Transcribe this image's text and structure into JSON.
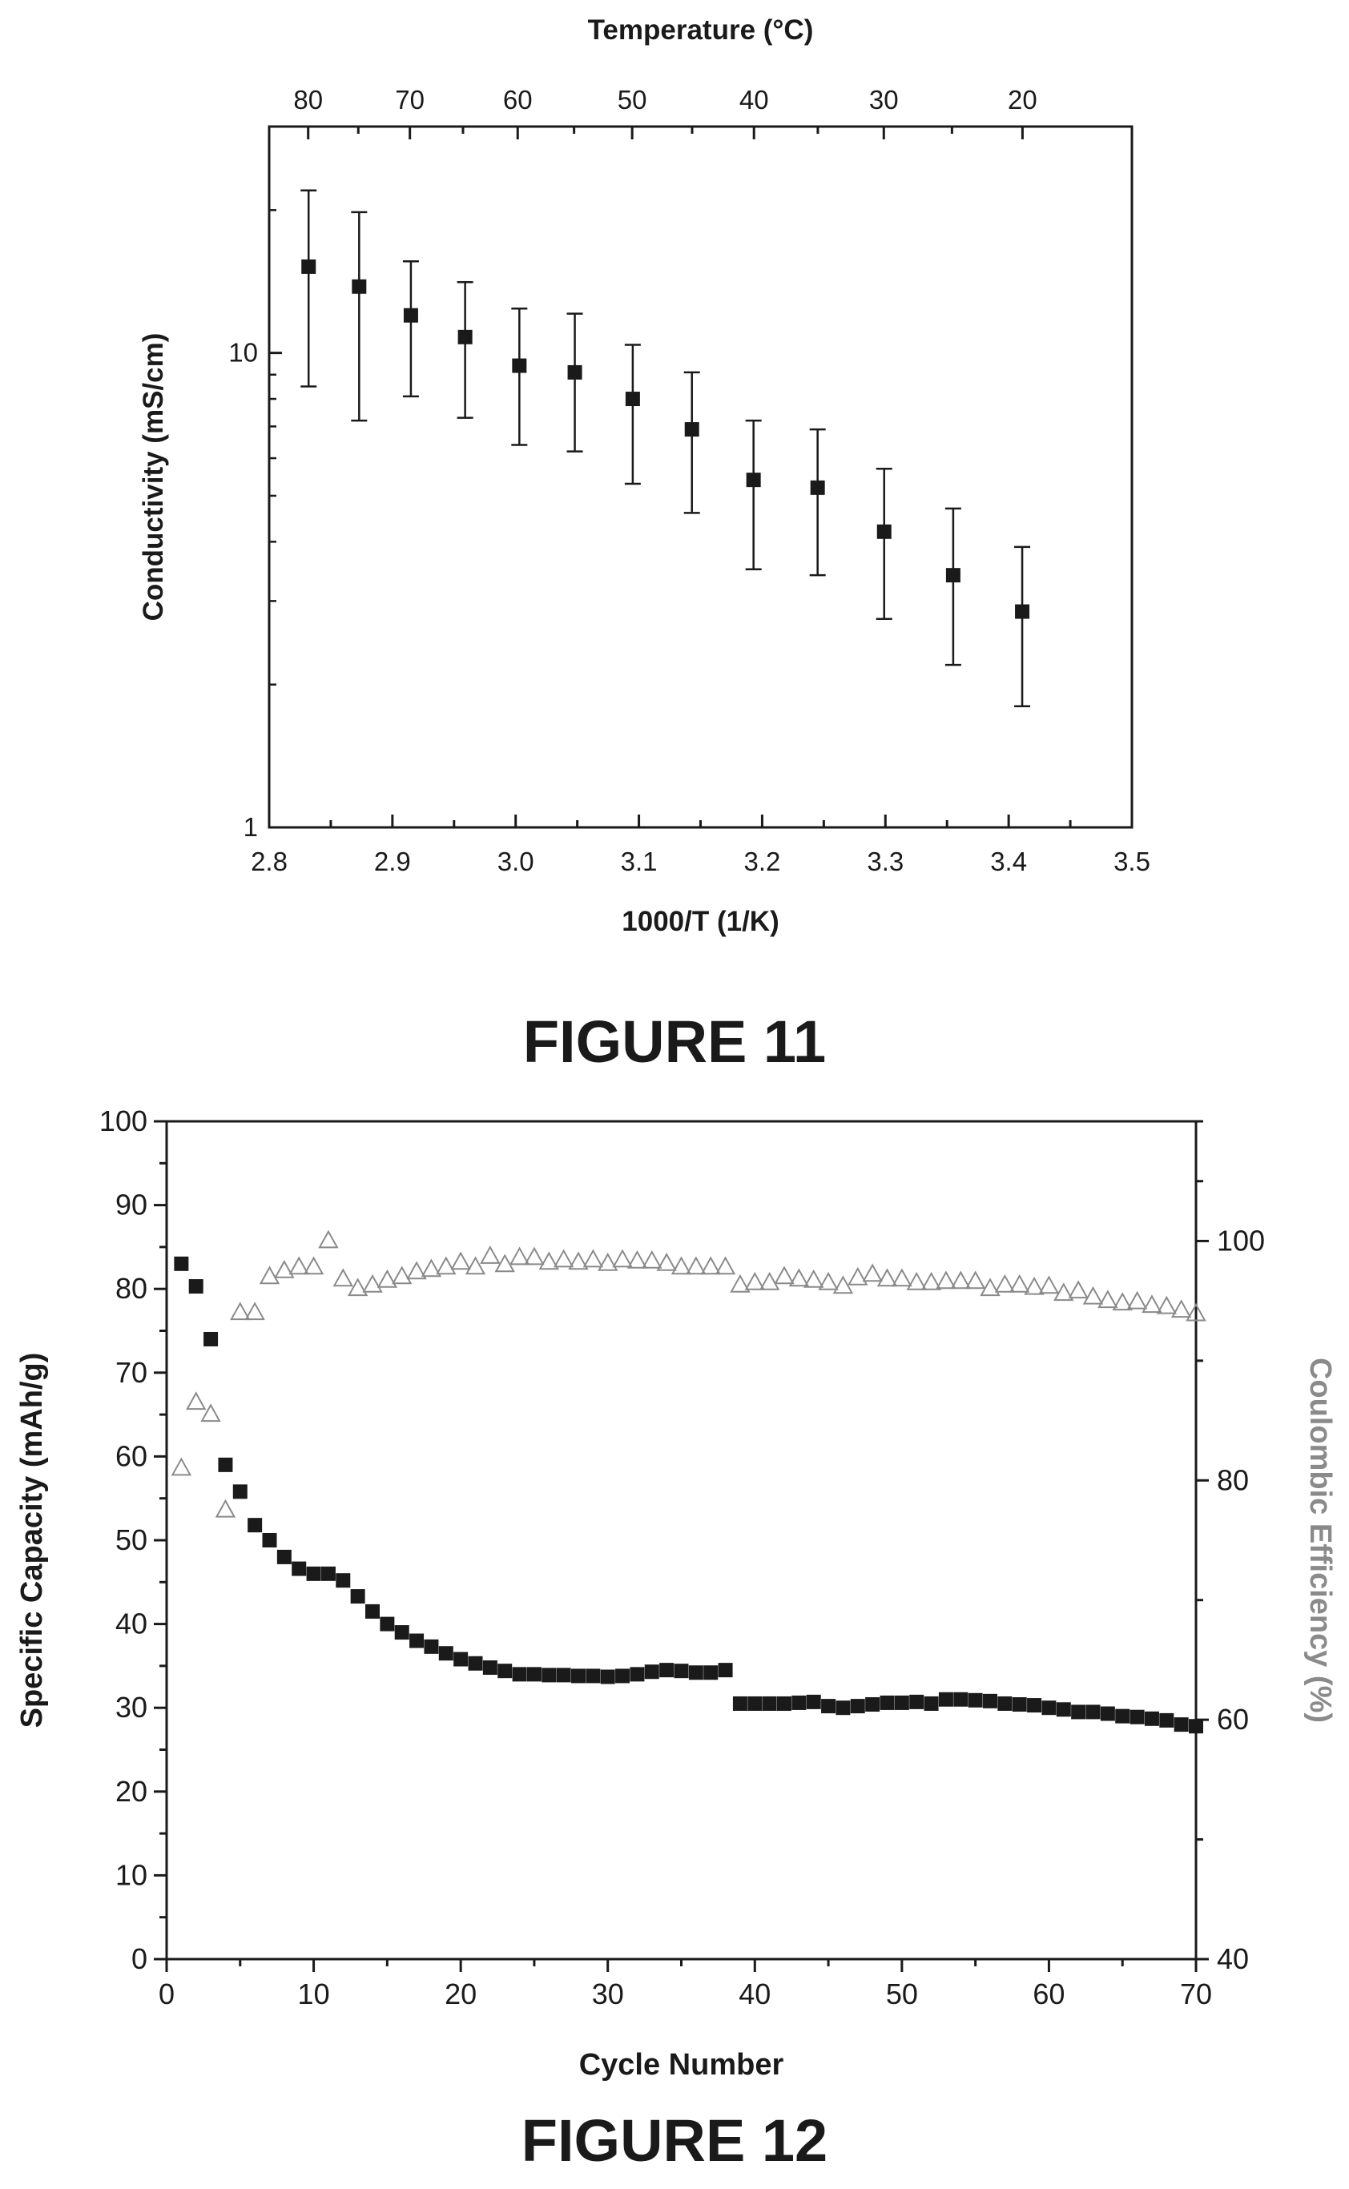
{
  "figures": [
    {
      "caption": "FIGURE 11"
    },
    {
      "caption": "FIGURE 12"
    }
  ],
  "chart_data": [
    {
      "type": "scatter",
      "xlabel": "1000/T (1/K)",
      "ylabel": "Conductivity (mS/cm)",
      "top_axis_label": "Temperature (°C)",
      "xlim": [
        2.8,
        3.5
      ],
      "ylim": [
        1,
        30
      ],
      "yscale": "log",
      "x_ticks": [
        "2.8",
        "2.9",
        "3.0",
        "3.1",
        "3.2",
        "3.3",
        "3.4",
        "3.5"
      ],
      "y_ticks": [
        "1",
        "10"
      ],
      "top_ticks": [
        "80",
        "70",
        "60",
        "50",
        "40",
        "30",
        "20"
      ],
      "grid": false,
      "marker": "filled-square",
      "marker_color": "#1a1a1a",
      "series": [
        {
          "x": [
            2.832,
            2.873,
            2.915,
            2.959,
            3.003,
            3.048,
            3.095,
            3.143,
            3.193,
            3.245,
            3.299,
            3.355,
            3.411
          ],
          "y": [
            15.2,
            13.8,
            12.0,
            10.8,
            9.4,
            9.1,
            8.0,
            6.9,
            5.4,
            5.2,
            4.2,
            3.4,
            2.85
          ],
          "y_low": [
            8.5,
            7.2,
            8.1,
            7.3,
            6.4,
            6.2,
            5.3,
            4.6,
            3.5,
            3.4,
            2.75,
            2.2,
            1.8
          ],
          "y_high": [
            22.0,
            19.8,
            15.6,
            14.1,
            12.4,
            12.1,
            10.4,
            9.1,
            7.2,
            6.9,
            5.7,
            4.7,
            3.9
          ]
        }
      ]
    },
    {
      "type": "scatter",
      "xlabel": "Cycle Number",
      "ylabel": "Specific Capacity (mAh/g)",
      "ylabel_right": "Coulombic Efficiency (%)",
      "xlim": [
        0,
        70
      ],
      "ylim": [
        0,
        100
      ],
      "ylim_right": [
        40,
        110
      ],
      "x_ticks": [
        "0",
        "10",
        "20",
        "30",
        "40",
        "50",
        "60",
        "70"
      ],
      "y_ticks": [
        "0",
        "10",
        "20",
        "30",
        "40",
        "50",
        "60",
        "70",
        "80",
        "90",
        "100"
      ],
      "y_right_ticks": [
        "40",
        "60",
        "80",
        "100"
      ],
      "grid": false,
      "right_axis_color": "#8a8a8a",
      "series": [
        {
          "axis": "left",
          "marker": "filled-square",
          "color": "#1a1a1a",
          "x": [
            1,
            2,
            3,
            4,
            5,
            6,
            7,
            8,
            9,
            10,
            11,
            12,
            13,
            14,
            15,
            16,
            17,
            18,
            19,
            20,
            21,
            22,
            23,
            24,
            25,
            26,
            27,
            28,
            29,
            30,
            31,
            32,
            33,
            34,
            35,
            36,
            37,
            38,
            39,
            40,
            41,
            42,
            43,
            44,
            45,
            46,
            47,
            48,
            49,
            50,
            51,
            52,
            53,
            54,
            55,
            56,
            57,
            58,
            59,
            60,
            61,
            62,
            63,
            64,
            65,
            66,
            67,
            68,
            69,
            70
          ],
          "y": [
            83,
            80.3,
            74,
            59,
            55.8,
            51.8,
            50,
            48,
            46.6,
            46,
            46,
            45.2,
            43.3,
            41.5,
            40,
            39,
            38,
            37.3,
            36.5,
            35.8,
            35.3,
            34.8,
            34.4,
            34,
            34,
            33.9,
            33.9,
            33.8,
            33.8,
            33.7,
            33.8,
            34,
            34.3,
            34.5,
            34.4,
            34.2,
            34.2,
            34.5,
            30.5,
            30.5,
            30.5,
            30.5,
            30.6,
            30.7,
            30.2,
            30,
            30.2,
            30.4,
            30.6,
            30.6,
            30.7,
            30.5,
            31,
            31,
            30.9,
            30.8,
            30.5,
            30.4,
            30.3,
            30,
            29.8,
            29.5,
            29.5,
            29.3,
            29,
            28.9,
            28.7,
            28.5,
            28,
            27.8
          ]
        },
        {
          "axis": "right",
          "marker": "open-triangle",
          "color": "#8a8a8a",
          "x": [
            1,
            2,
            3,
            4,
            5,
            6,
            7,
            8,
            9,
            10,
            11,
            12,
            13,
            14,
            15,
            16,
            17,
            18,
            19,
            20,
            21,
            22,
            23,
            24,
            25,
            26,
            27,
            28,
            29,
            30,
            31,
            32,
            33,
            34,
            35,
            36,
            37,
            38,
            39,
            40,
            41,
            42,
            43,
            44,
            45,
            46,
            47,
            48,
            49,
            50,
            51,
            52,
            53,
            54,
            55,
            56,
            57,
            58,
            59,
            60,
            61,
            62,
            63,
            64,
            65,
            66,
            67,
            68,
            69,
            70
          ],
          "y": [
            81,
            86.5,
            85.5,
            77.5,
            94,
            94,
            97,
            97.5,
            97.8,
            97.8,
            100,
            96.8,
            96,
            96.3,
            96.7,
            97,
            97.4,
            97.6,
            97.8,
            98.2,
            97.8,
            98.7,
            98,
            98.6,
            98.6,
            98.2,
            98.4,
            98.2,
            98.4,
            98.1,
            98.4,
            98.3,
            98.3,
            98.1,
            97.8,
            97.8,
            97.8,
            97.8,
            96.3,
            96.5,
            96.5,
            97,
            96.8,
            96.7,
            96.5,
            96.2,
            96.9,
            97.2,
            96.8,
            96.8,
            96.5,
            96.5,
            96.6,
            96.6,
            96.6,
            96,
            96.3,
            96.3,
            96.1,
            96.2,
            95.6,
            95.8,
            95.3,
            95,
            94.8,
            94.9,
            94.6,
            94.5,
            94.2,
            93.9
          ]
        }
      ]
    }
  ]
}
